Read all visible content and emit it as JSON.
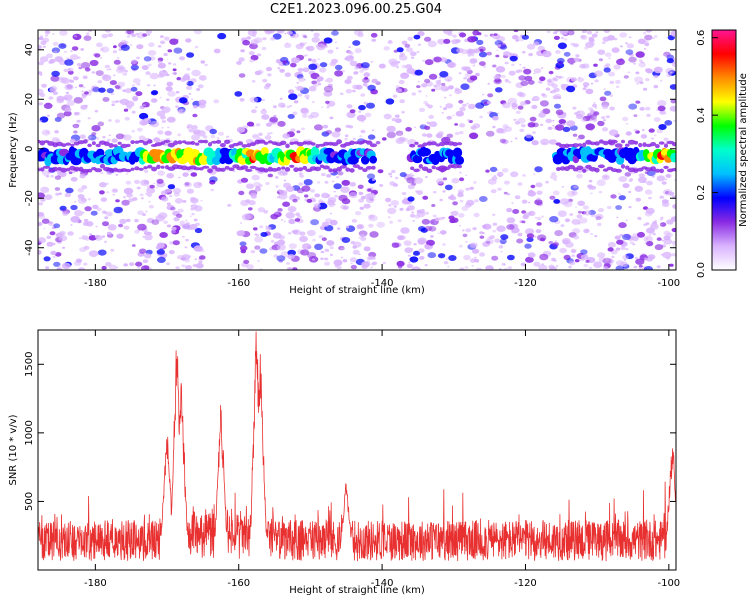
{
  "title": "C2E1.2023.096.00.25.G04",
  "chart_data": [
    {
      "type": "heatmap",
      "xlabel": "Height of straight line (km)",
      "ylabel": "Frequency (Hz)",
      "xlim": [
        -188,
        -99
      ],
      "ylim": [
        -49,
        48
      ],
      "x_ticks": [
        -180,
        -160,
        -140,
        -120,
        -100
      ],
      "y_ticks": [
        -40,
        -20,
        0,
        20,
        40
      ],
      "colorbar": {
        "label": "Normalized spectral amplitude",
        "range": [
          0.0,
          0.62
        ],
        "ticks": [
          0.0,
          0.2,
          0.4,
          0.6
        ],
        "colors": [
          "#ffffff",
          "#d9b3ff",
          "#8a2be2",
          "#0000ff",
          "#00bfff",
          "#00ffcc",
          "#00ff00",
          "#ffff00",
          "#ff8c00",
          "#ff0000",
          "#ff1493"
        ]
      },
      "band": {
        "center_hz": -3,
        "segments": [
          [
            -188,
            -141
          ],
          [
            -136,
            -129
          ],
          [
            -116,
            -99
          ]
        ],
        "hotspots": [
          -171,
          -169,
          -166,
          -158,
          -152,
          -101
        ]
      },
      "gap_x": [
        [
          -165,
          -160
        ],
        [
          -141,
          -139
        ]
      ],
      "grid": false
    },
    {
      "type": "line",
      "xlabel": "Height of straight line (km)",
      "ylabel": "SNR (10 * v/v)",
      "xlim": [
        -188,
        -99
      ],
      "ylim": [
        0,
        1750
      ],
      "x_ticks": [
        -180,
        -160,
        -140,
        -120,
        -100
      ],
      "y_ticks": [
        500,
        1000,
        1500
      ],
      "series": [
        {
          "color": "#e83030",
          "baseline": 200,
          "noise": 150,
          "peaks": [
            {
              "x": -168.6,
              "y": 1640
            },
            {
              "x": -168.0,
              "y": 1250
            },
            {
              "x": -162.5,
              "y": 1100
            },
            {
              "x": -157.5,
              "y": 1740
            },
            {
              "x": -157.0,
              "y": 1450
            },
            {
              "x": -170.0,
              "y": 850
            },
            {
              "x": -145.0,
              "y": 560
            },
            {
              "x": -99.5,
              "y": 760
            }
          ]
        }
      ],
      "grid": false
    }
  ]
}
